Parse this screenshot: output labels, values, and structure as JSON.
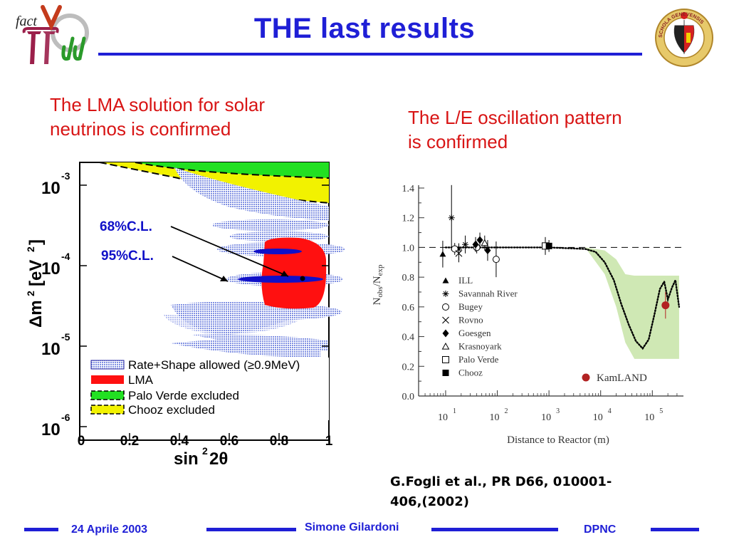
{
  "slide": {
    "title": "THE last results",
    "logo_left_text": "fact",
    "seal_text": "SCHOLA GENEVENSIS",
    "left_caption_line1": "The LMA solution for  solar",
    "left_caption_line2": "neutrinos is confirmed",
    "right_caption_line1": "The L/E oscillation pattern",
    "right_caption_line2": "is confirmed",
    "reference_line1": "G.Fogli et al., PR D66, 010001-",
    "reference_line2": "406,(2002)"
  },
  "footer": {
    "date": "24 Aprile 2003",
    "author": "Simone Gilardoni",
    "institute": "DPNC"
  },
  "left_plot": {
    "annotation_68": "68%C.L.",
    "annotation_95": "95%C.L.",
    "y_tick_base": "10",
    "y_tick_exponents": [
      "-3",
      "-4",
      "-5",
      "-6"
    ],
    "x_ticks": [
      "0",
      "0.2",
      "0.4",
      "0.6",
      "0.8",
      "1"
    ],
    "legend": [
      "Rate+Shape allowed (≥0.9MeV)",
      "LMA",
      "Palo Verde excluded",
      "Chooz excluded"
    ],
    "colors": {
      "rate_shape": "#7a8ce0",
      "lma": "#ff1010",
      "palo_verde": "#22e022",
      "chooz": "#f2f200",
      "cl": "#1010c8"
    }
  },
  "chart_data": [
    {
      "type": "scatter",
      "xlabel": "Distance to Reactor (m)",
      "ylabel": "Nobs/Nexp",
      "x_scale": "log",
      "xlim": [
        3,
        400000
      ],
      "ylim": [
        0,
        1.4
      ],
      "x_tick_labels": [
        "10",
        "10",
        "10",
        "10",
        "10"
      ],
      "x_tick_exponents": [
        "1",
        "2",
        "3",
        "4",
        "5"
      ],
      "y_tick_labels": [
        "0.0",
        "0.2",
        "0.4",
        "0.6",
        "0.8",
        "1.0",
        "1.2",
        "1.4"
      ],
      "reference_line": 1.0,
      "series": [
        {
          "name": "ILL",
          "marker": "filled-triangle",
          "points": [
            {
              "x": 8.8,
              "y": 0.955,
              "err": 0.09
            }
          ]
        },
        {
          "name": "Savannah River",
          "marker": "asterisk",
          "points": [
            {
              "x": 18,
              "y": 0.988,
              "err": 0.04
            },
            {
              "x": 24,
              "y": 1.02,
              "err": 0.06
            },
            {
              "x": 13,
              "y": 1.2,
              "err": 0.22
            }
          ]
        },
        {
          "name": "Bugey",
          "marker": "open-circle",
          "points": [
            {
              "x": 15,
              "y": 0.99,
              "err": 0.04
            },
            {
              "x": 40,
              "y": 1.0,
              "err": 0.04
            },
            {
              "x": 95,
              "y": 0.92,
              "err": 0.12
            }
          ]
        },
        {
          "name": "Rovno",
          "marker": "x",
          "points": [
            {
              "x": 18,
              "y": 0.96,
              "err": 0.06
            }
          ]
        },
        {
          "name": "Goesgen",
          "marker": "filled-diamond",
          "points": [
            {
              "x": 38,
              "y": 1.02,
              "err": 0.05
            },
            {
              "x": 46,
              "y": 1.05,
              "err": 0.05
            },
            {
              "x": 65,
              "y": 0.98,
              "err": 0.07
            }
          ]
        },
        {
          "name": "Krasnoyark",
          "marker": "open-triangle",
          "points": [
            {
              "x": 57,
              "y": 1.03,
              "err": 0.05
            }
          ]
        },
        {
          "name": "Palo Verde",
          "marker": "open-square",
          "points": [
            {
              "x": 850,
              "y": 1.01,
              "err": 0.06
            }
          ]
        },
        {
          "name": "Chooz",
          "marker": "filled-square",
          "points": [
            {
              "x": 1000,
              "y": 1.01,
              "err": 0.04
            }
          ]
        },
        {
          "name": "KamLAND",
          "marker": "filled-circle",
          "color": "#b22222",
          "points": [
            {
              "x": 180000,
              "y": 0.611,
              "err": 0.09
            }
          ]
        }
      ],
      "oscillation_curve": {
        "style": "dotted",
        "points": [
          [
            10,
            1.0
          ],
          [
            1000,
            1.0
          ],
          [
            5000,
            0.99
          ],
          [
            8000,
            0.97
          ],
          [
            12000,
            0.9
          ],
          [
            18000,
            0.78
          ],
          [
            25000,
            0.62
          ],
          [
            35000,
            0.48
          ],
          [
            48000,
            0.37
          ],
          [
            65000,
            0.32
          ],
          [
            85000,
            0.38
          ],
          [
            110000,
            0.55
          ],
          [
            140000,
            0.72
          ],
          [
            170000,
            0.77
          ],
          [
            200000,
            0.65
          ],
          [
            240000,
            0.73
          ],
          [
            280000,
            0.78
          ],
          [
            330000,
            0.6
          ]
        ]
      },
      "band": {
        "color": "#cfe8b4",
        "upper": [
          [
            5000,
            1.0
          ],
          [
            12000,
            0.98
          ],
          [
            20000,
            0.92
          ],
          [
            30000,
            0.82
          ],
          [
            45000,
            0.81
          ],
          [
            330000,
            0.81
          ]
        ],
        "lower": [
          [
            5000,
            1.0
          ],
          [
            12000,
            0.82
          ],
          [
            20000,
            0.6
          ],
          [
            30000,
            0.36
          ],
          [
            45000,
            0.25
          ],
          [
            330000,
            0.25
          ]
        ]
      }
    }
  ]
}
